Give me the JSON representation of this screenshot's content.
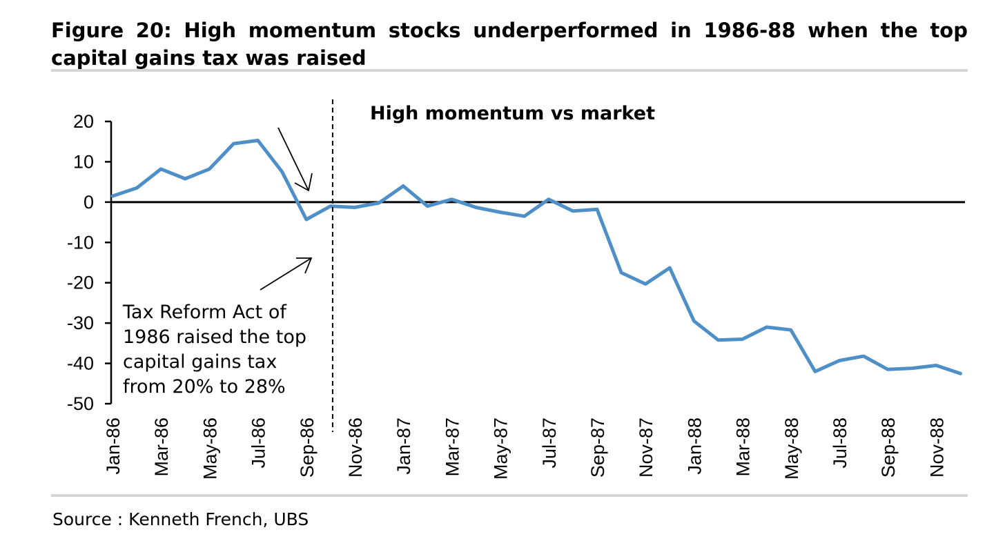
{
  "figure": {
    "title": "Figure 20: High momentum stocks underperformed in 1986-88 when the top capital gains tax was raised",
    "source": "Source : Kenneth French, UBS"
  },
  "chart_data": {
    "type": "line",
    "series_label": "High momentum vs market",
    "ylim": [
      -50,
      20
    ],
    "yticks": [
      20,
      10,
      0,
      -10,
      -20,
      -30,
      -40,
      -50
    ],
    "x": [
      "Jan-86",
      "Feb-86",
      "Mar-86",
      "Apr-86",
      "May-86",
      "Jun-86",
      "Jul-86",
      "Aug-86",
      "Sep-86",
      "Oct-86",
      "Nov-86",
      "Dec-86",
      "Jan-87",
      "Feb-87",
      "Mar-87",
      "Apr-87",
      "May-87",
      "Jun-87",
      "Jul-87",
      "Aug-87",
      "Sep-87",
      "Oct-87",
      "Nov-87",
      "Dec-87",
      "Jan-88",
      "Feb-88",
      "Mar-88",
      "Apr-88",
      "May-88",
      "Jun-88",
      "Jul-88",
      "Aug-88",
      "Sep-88",
      "Oct-88",
      "Nov-88",
      "Dec-88"
    ],
    "xtick_labels": [
      "Jan-86",
      "Mar-86",
      "May-86",
      "Jul-86",
      "Sep-86",
      "Nov-86",
      "Jan-87",
      "Mar-87",
      "May-87",
      "Jul-87",
      "Sep-87",
      "Nov-87",
      "Jan-88",
      "Mar-88",
      "May-88",
      "Jul-88",
      "Sep-88",
      "Nov-88"
    ],
    "series": [
      {
        "values": [
          1.5,
          3.5,
          8.2,
          5.8,
          8.2,
          14.5,
          15.3,
          7.5,
          -4.3,
          -1.0,
          -1.3,
          -0.2,
          4.0,
          -1.0,
          0.7,
          -1.3,
          -2.5,
          -3.5,
          0.7,
          -2.2,
          -1.8,
          -17.5,
          -20.3,
          -16.3,
          -29.5,
          -34.2,
          -34.0,
          -31.0,
          -31.7,
          -42.0,
          -39.3,
          -38.2,
          -41.5,
          -41.2,
          -40.5,
          -42.5
        ],
        "color": "#4f8fc8"
      }
    ],
    "annotation": {
      "lines": [
        "Tax Reform Act of",
        "1986 raised the top",
        "capital gains tax",
        "from 20% to 28%"
      ],
      "marker_after": "Oct-86"
    },
    "zero_line": true,
    "grid": false
  }
}
